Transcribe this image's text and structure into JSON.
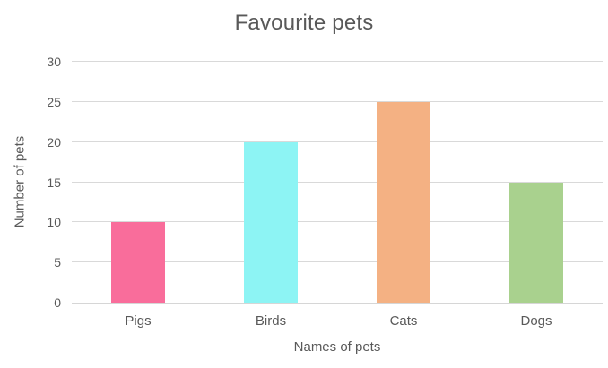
{
  "chart_data": {
    "type": "bar",
    "title": "Favourite pets",
    "xlabel": "Names of pets",
    "ylabel": "Number of pets",
    "categories": [
      "Pigs",
      "Birds",
      "Cats",
      "Dogs"
    ],
    "values": [
      10,
      20,
      25,
      15
    ],
    "bar_colors": [
      "#F96D9B",
      "#8DF4F4",
      "#F4B183",
      "#A9D18E"
    ],
    "ylim": [
      0,
      30
    ],
    "yticks": [
      0,
      5,
      10,
      15,
      20,
      25,
      30
    ],
    "grid": "horizontal",
    "legend": "none",
    "gridline_color": "#D9D9D9",
    "axis_line_color": "#D6D6D6",
    "text_color": "#595959",
    "background_color": "#FFFFFF"
  }
}
